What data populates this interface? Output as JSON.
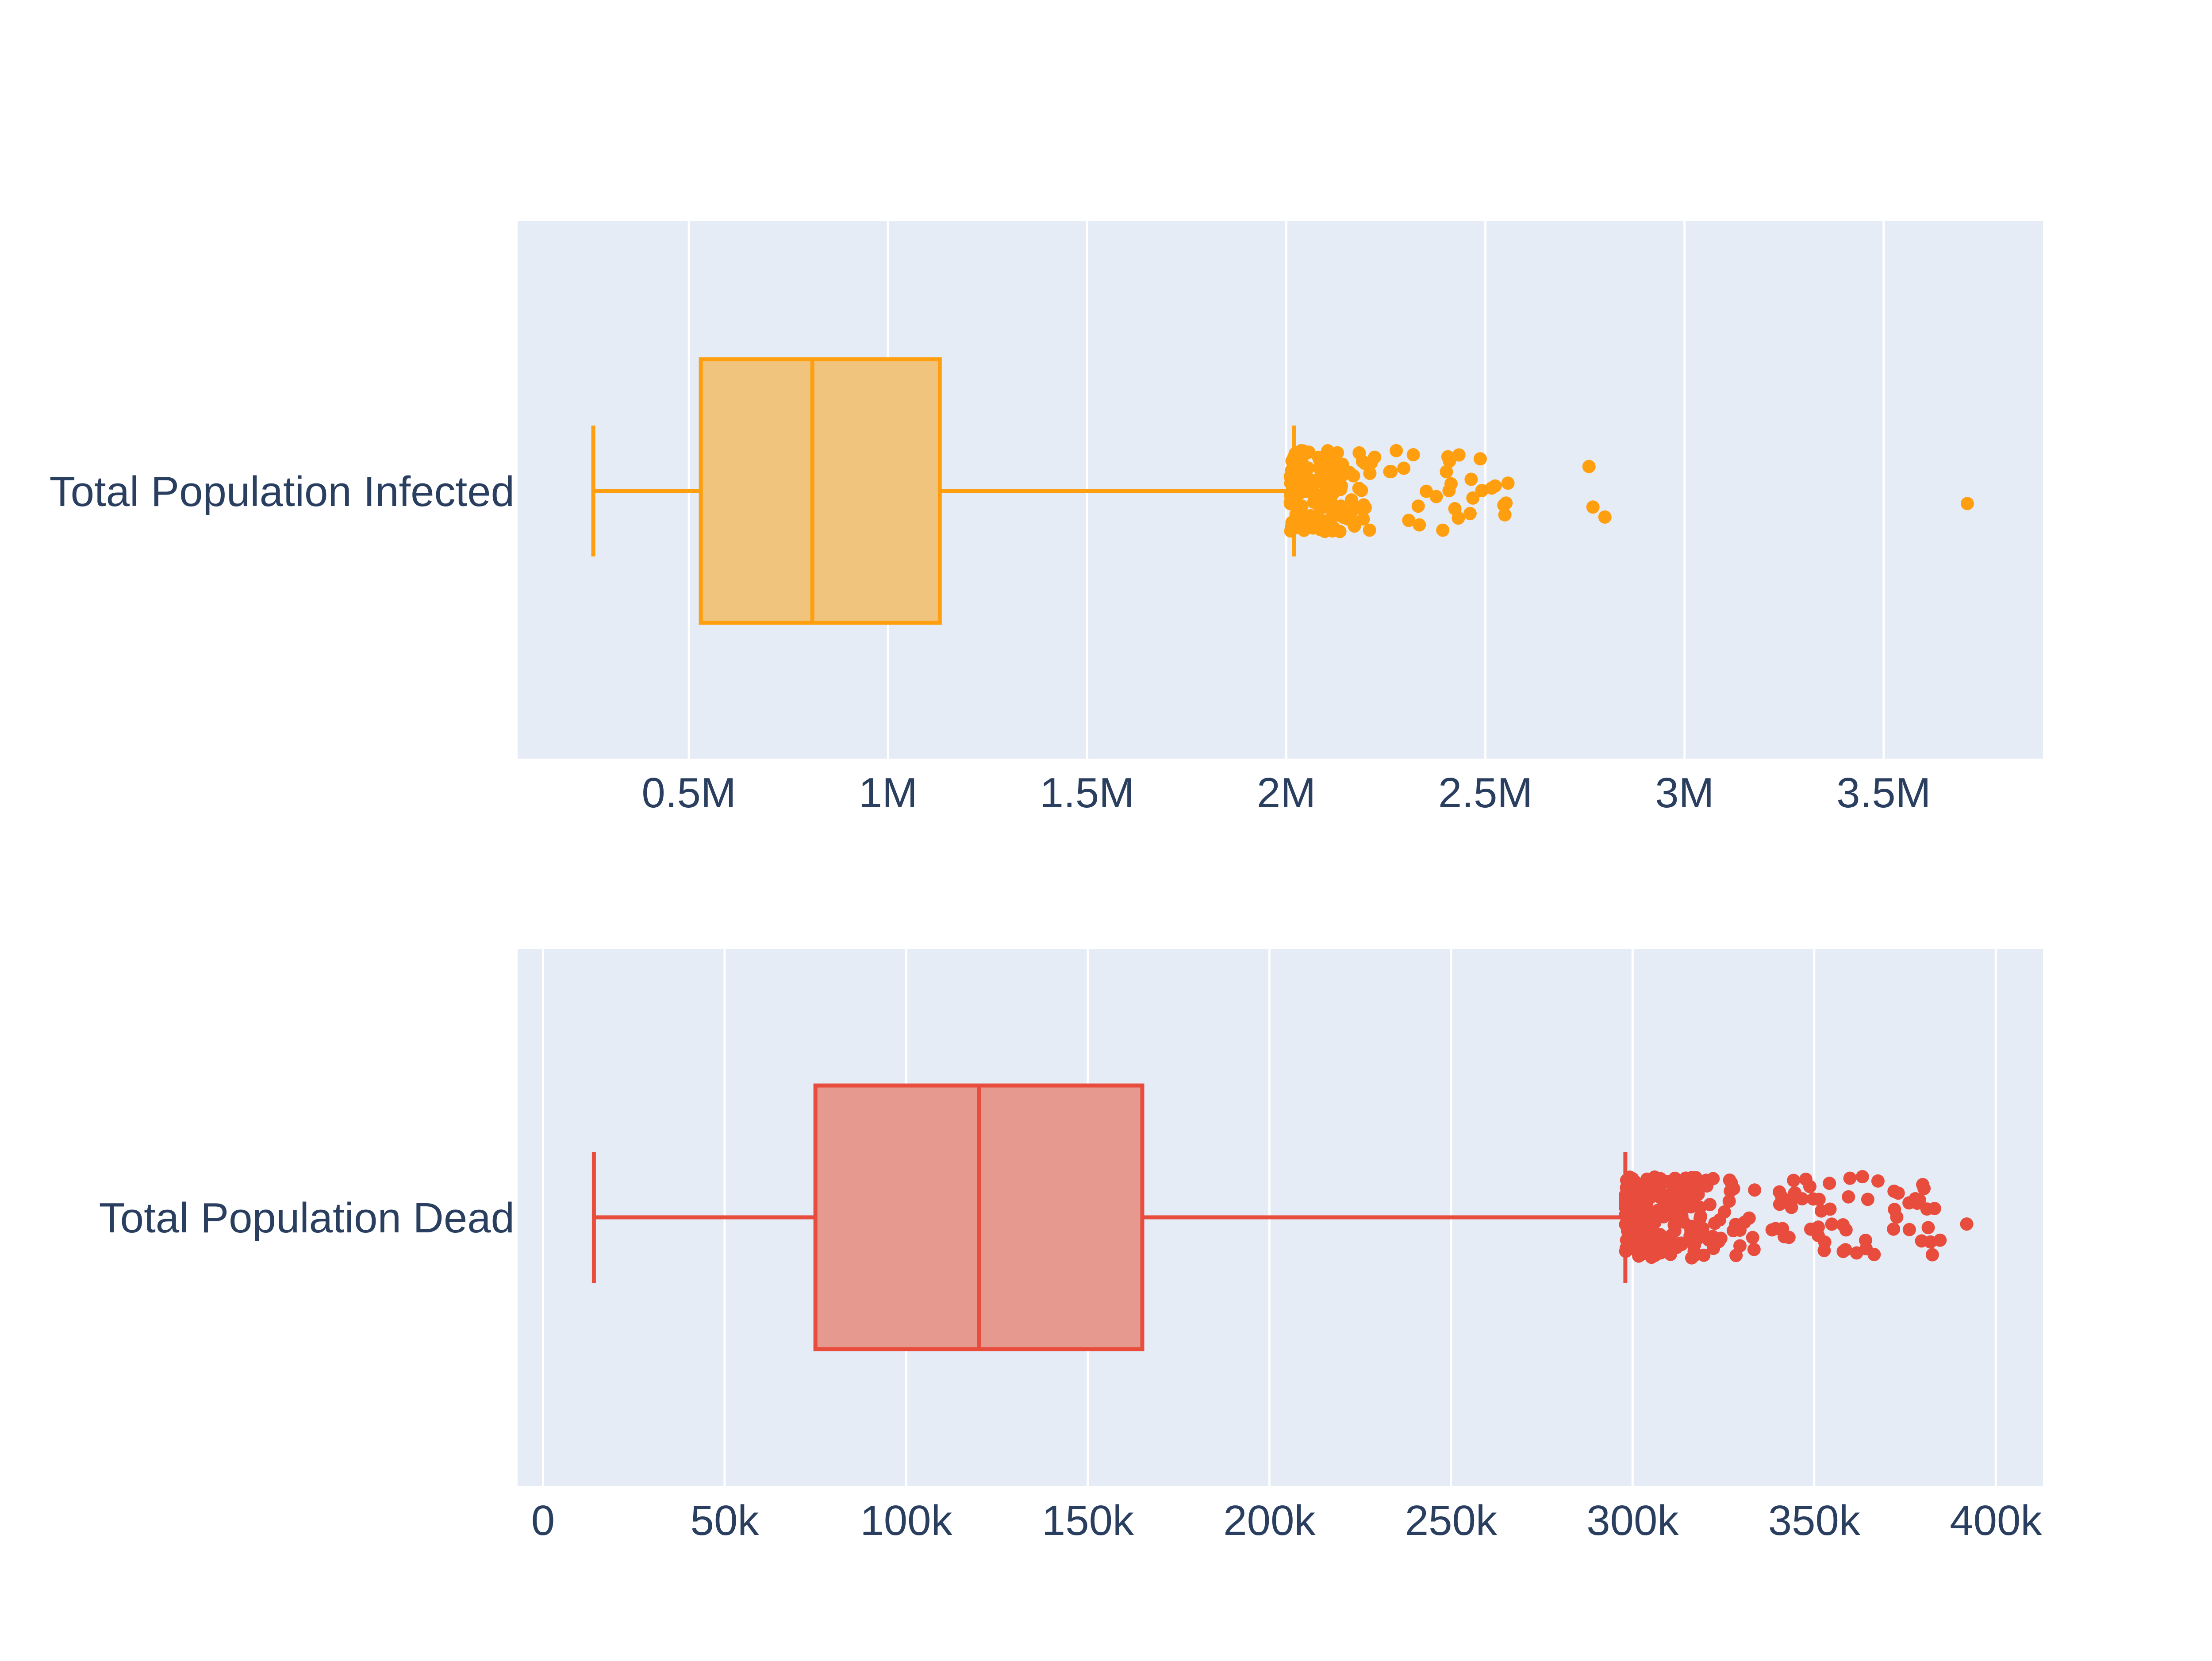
{
  "chart_data": [
    {
      "type": "box",
      "orientation": "horizontal",
      "category": "Total Population Infected",
      "color": "#ff9f0f",
      "fill": "#f0c47c",
      "xlim": [
        70000,
        3900000
      ],
      "ticks": [
        {
          "value": 500000,
          "label": "0.5M"
        },
        {
          "value": 1000000,
          "label": "1M"
        },
        {
          "value": 1500000,
          "label": "1.5M"
        },
        {
          "value": 2000000,
          "label": "2M"
        },
        {
          "value": 2500000,
          "label": "2.5M"
        },
        {
          "value": 3000000,
          "label": "3M"
        },
        {
          "value": 3500000,
          "label": "3.5M"
        }
      ],
      "whisker_low": 260000,
      "q1": 530000,
      "median": 810000,
      "q3": 1130000,
      "whisker_high": 2020000,
      "outliers": {
        "dense_min": 2010000,
        "dense_max": 2190000,
        "dense_count": 150,
        "sparse_min": 2190000,
        "sparse_max": 2560000,
        "sparse_count": 40,
        "far": [
          2760000,
          2770000,
          2800000,
          3710000
        ]
      },
      "grid": true,
      "grid_color": "#ffffff",
      "plot_bgcolor": "#e5ecf6"
    },
    {
      "type": "box",
      "orientation": "horizontal",
      "category": "Total Population Dead",
      "color": "#e74c3c",
      "fill": "#e6998f",
      "xlim": [
        -7000,
        413000
      ],
      "ticks": [
        {
          "value": 0,
          "label": "0"
        },
        {
          "value": 50000,
          "label": "50k"
        },
        {
          "value": 100000,
          "label": "100k"
        },
        {
          "value": 150000,
          "label": "150k"
        },
        {
          "value": 200000,
          "label": "200k"
        },
        {
          "value": 250000,
          "label": "250k"
        },
        {
          "value": 300000,
          "label": "300k"
        },
        {
          "value": 350000,
          "label": "350k"
        },
        {
          "value": 400000,
          "label": "400k"
        }
      ],
      "whisker_low": 14000,
      "q1": 75000,
      "median": 120000,
      "q3": 165000,
      "whisker_high": 298000,
      "outliers": {
        "dense_min": 298000,
        "dense_max": 320000,
        "dense_count": 190,
        "sparse_min": 320000,
        "sparse_max": 385000,
        "sparse_count": 90,
        "far": [
          392000
        ]
      },
      "grid": true,
      "grid_color": "#ffffff",
      "plot_bgcolor": "#e5ecf6"
    }
  ]
}
